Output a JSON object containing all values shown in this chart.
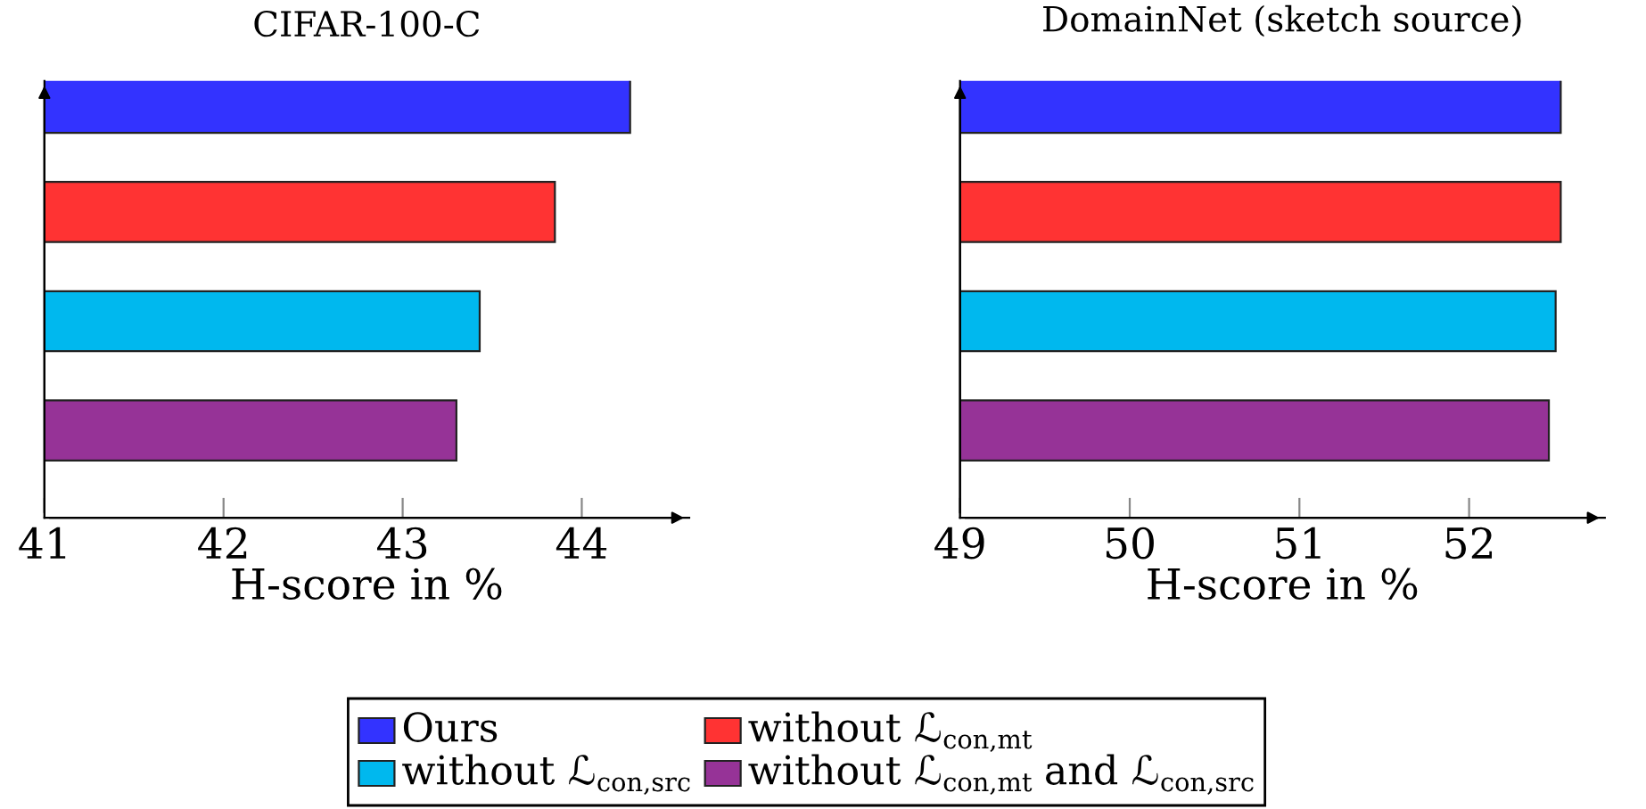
{
  "chart_data": [
    {
      "type": "bar",
      "orientation": "horizontal",
      "title": "CIFAR-100-C",
      "xlabel": "H-score in %",
      "categories": [
        null
      ],
      "xlim": [
        41,
        44.6
      ],
      "xticks": [
        41,
        42,
        43,
        44
      ],
      "grid": false,
      "legend": "bottom",
      "tick_labels": "x",
      "series": [
        {
          "name": "Ours",
          "color": "#3333ff",
          "values": [
            44.27
          ]
        },
        {
          "name": "without ℒ$_{con,mt}$",
          "color": "#ff3333",
          "values": [
            43.85
          ]
        },
        {
          "name": "without ℒ$_{con,src}$",
          "color": "#00b8ee",
          "values": [
            43.43
          ]
        },
        {
          "name": "without ℒ$_{con,mt}$ and ℒ$_{con,src}$",
          "color": "#963397",
          "values": [
            43.3
          ]
        }
      ]
    },
    {
      "type": "bar",
      "orientation": "horizontal",
      "title": "DomainNet (sketch source)",
      "xlabel": "H-score in %",
      "categories": [
        null
      ],
      "xlim": [
        49,
        52.8
      ],
      "xticks": [
        49,
        50,
        51,
        52
      ],
      "grid": false,
      "legend": "bottom",
      "tick_labels": "x",
      "series": [
        {
          "name": "Ours",
          "color": "#3333ff",
          "values": [
            52.54
          ]
        },
        {
          "name": "without ℒ$_{con,mt}$",
          "color": "#ff3333",
          "values": [
            52.54
          ]
        },
        {
          "name": "without ℒ$_{con,src}$",
          "color": "#00b8ee",
          "values": [
            52.51
          ]
        },
        {
          "name": "without ℒ$_{con,mt}$ and ℒ$_{con,src}$",
          "color": "#963397",
          "values": [
            52.47
          ]
        }
      ]
    }
  ]
}
